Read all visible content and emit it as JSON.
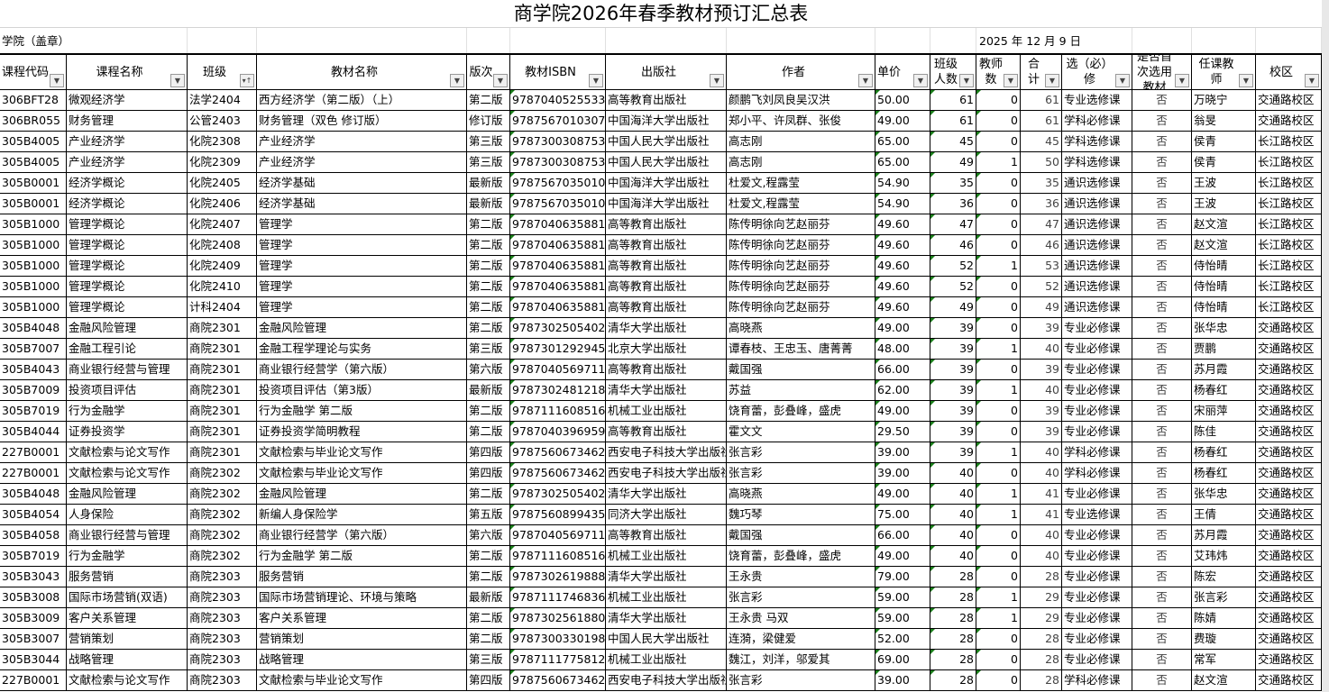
{
  "title": "商学院2026年春季教材预订汇总表",
  "college_label": "学院（盖章）",
  "date": "2025 年  12  月   9   日",
  "headers": [
    "课程代码",
    "课程名称",
    "班级",
    "教材名称",
    "版次",
    "教材ISBN",
    "出版社",
    "作者",
    "单价",
    "班级人数",
    "教师数",
    "合计",
    "选（必）修",
    "是否首次选用教材",
    "任课教师",
    "校区"
  ],
  "rows": [
    [
      "306BFT28",
      "微观经济学",
      "法学2404",
      "西方经济学（第二版）（上）",
      "第二版",
      "9787040525533",
      "高等教育出版社",
      "颜鹏飞刘凤良吴汉洪",
      "50.00",
      "61",
      "0",
      "61",
      "专业选修课",
      "否",
      "万晓宁",
      "交通路校区"
    ],
    [
      "306BR055",
      "财务管理",
      "公管2403",
      "财务管理（双色 修订版）",
      "修订版",
      "9787567010307",
      "中国海洋大学出版社",
      "郑小平、许凤群、张俊",
      "49.00",
      "61",
      "0",
      "61",
      "学科必修课",
      "否",
      "翁旻",
      "交通路校区"
    ],
    [
      "305B4005",
      "产业经济学",
      "化院2308",
      "产业经济学",
      "第三版",
      "9787300308753",
      "中国人民大学出版社",
      "高志刚",
      "65.00",
      "45",
      "0",
      "45",
      "学科选修课",
      "否",
      "侯青",
      "长江路校区"
    ],
    [
      "305B4005",
      "产业经济学",
      "化院2309",
      "产业经济学",
      "第三版",
      "9787300308753",
      "中国人民大学出版社",
      "高志刚",
      "65.00",
      "49",
      "1",
      "50",
      "学科选修课",
      "否",
      "侯青",
      "长江路校区"
    ],
    [
      "305B0001",
      "经济学概论",
      "化院2405",
      "经济学基础",
      "最新版",
      "9787567035010",
      "中国海洋大学出版社",
      "杜爱文,程露莹",
      "54.90",
      "35",
      "0",
      "35",
      "通识选修课",
      "否",
      "王波",
      "长江路校区"
    ],
    [
      "305B0001",
      "经济学概论",
      "化院2406",
      "经济学基础",
      "最新版",
      "9787567035010",
      "中国海洋大学出版社",
      "杜爱文,程露莹",
      "54.90",
      "36",
      "0",
      "36",
      "通识选修课",
      "否",
      "王波",
      "长江路校区"
    ],
    [
      "305B1000",
      "管理学概论",
      "化院2407",
      "管理学",
      "第二版",
      "9787040635881",
      "高等教育出版社",
      "陈传明徐向艺赵丽芬",
      "49.60",
      "47",
      "0",
      "47",
      "通识选修课",
      "否",
      "赵文渲",
      "长江路校区"
    ],
    [
      "305B1000",
      "管理学概论",
      "化院2408",
      "管理学",
      "第二版",
      "9787040635881",
      "高等教育出版社",
      "陈传明徐向艺赵丽芬",
      "49.60",
      "46",
      "0",
      "46",
      "通识选修课",
      "否",
      "赵文渲",
      "长江路校区"
    ],
    [
      "305B1000",
      "管理学概论",
      "化院2409",
      "管理学",
      "第二版",
      "9787040635881",
      "高等教育出版社",
      "陈传明徐向艺赵丽芬",
      "49.60",
      "52",
      "1",
      "53",
      "通识选修课",
      "否",
      "侍怡晴",
      "长江路校区"
    ],
    [
      "305B1000",
      "管理学概论",
      "化院2410",
      "管理学",
      "第二版",
      "9787040635881",
      "高等教育出版社",
      "陈传明徐向艺赵丽芬",
      "49.60",
      "52",
      "0",
      "52",
      "通识选修课",
      "否",
      "侍怡晴",
      "长江路校区"
    ],
    [
      "305B1000",
      "管理学概论",
      "计科2404",
      "管理学",
      "第二版",
      "9787040635881",
      "高等教育出版社",
      "陈传明徐向艺赵丽芬",
      "49.60",
      "49",
      "0",
      "49",
      "通识选修课",
      "否",
      "侍怡晴",
      "长江路校区"
    ],
    [
      "305B4048",
      "金融风险管理",
      "商院2301",
      "金融风险管理",
      "第二版",
      "9787302505402",
      "清华大学出版社",
      "高晓燕",
      "49.00",
      "39",
      "0",
      "39",
      "专业必修课",
      "否",
      "张华忠",
      "交通路校区"
    ],
    [
      "305B7007",
      "金融工程引论",
      "商院2301",
      "金融工程学理论与实务",
      "第三版",
      "9787301292945",
      "北京大学出版社",
      "谭春枝、王忠玉、唐菁菁",
      "48.00",
      "39",
      "1",
      "40",
      "专业必修课",
      "否",
      "贾鹏",
      "交通路校区"
    ],
    [
      "305B4043",
      "商业银行经营与管理",
      "商院2301",
      "商业银行经营学（第六版）",
      "第六版",
      "9787040569711",
      "高等教育出版社",
      "戴国强",
      "66.00",
      "39",
      "0",
      "39",
      "专业必修课",
      "否",
      "苏月霞",
      "交通路校区"
    ],
    [
      "305B7009",
      "投资项目评估",
      "商院2301",
      "投资项目评估（第3版）",
      "最新版",
      "9787302481218",
      "清华大学出版社",
      "苏益",
      "62.00",
      "39",
      "1",
      "40",
      "专业必修课",
      "否",
      "杨春红",
      "交通路校区"
    ],
    [
      "305B7019",
      "行为金融学",
      "商院2301",
      "行为金融学 第二版",
      "第二版",
      "9787111608516",
      "机械工业出版社",
      "饶育蕾，彭叠峰，盛虎",
      "49.00",
      "39",
      "0",
      "39",
      "专业必修课",
      "否",
      "宋丽萍",
      "交通路校区"
    ],
    [
      "305B4044",
      "证券投资学",
      "商院2301",
      "证券投资学简明教程",
      "第二版",
      "9787040396959",
      "高等教育出版社",
      "霍文文",
      "29.50",
      "39",
      "0",
      "39",
      "专业必修课",
      "否",
      "陈佳",
      "交通路校区"
    ],
    [
      "227B0001",
      "文献检索与论文写作",
      "商院2301",
      "文献检索与毕业论文写作",
      "第四版",
      "9787560673462",
      "西安电子科技大学出版社",
      "张言彩",
      "39.00",
      "39",
      "1",
      "40",
      "学科必修课",
      "否",
      "杨春红",
      "交通路校区"
    ],
    [
      "227B0001",
      "文献检索与论文写作",
      "商院2302",
      "文献检索与毕业论文写作",
      "第四版",
      "9787560673462",
      "西安电子科技大学出版社",
      "张言彩",
      "39.00",
      "40",
      "0",
      "40",
      "学科必修课",
      "否",
      "杨春红",
      "交通路校区"
    ],
    [
      "305B4048",
      "金融风险管理",
      "商院2302",
      "金融风险管理",
      "第二版",
      "9787302505402",
      "清华大学出版社",
      "高晓燕",
      "49.00",
      "40",
      "1",
      "41",
      "专业必修课",
      "否",
      "张华忠",
      "交通路校区"
    ],
    [
      "305B4054",
      "人身保险",
      "商院2302",
      "新编人身保险学",
      "第五版",
      "9787560899435",
      "同济大学出版社",
      "魏巧琴",
      "75.00",
      "40",
      "1",
      "41",
      "专业选修课",
      "否",
      "王倩",
      "交通路校区"
    ],
    [
      "305B4058",
      "商业银行经营与管理",
      "商院2302",
      "商业银行经营学（第六版）",
      "第六版",
      "9787040569711",
      "高等教育出版社",
      "戴国强",
      "66.00",
      "40",
      "0",
      "40",
      "专业必修课",
      "否",
      "苏月霞",
      "交通路校区"
    ],
    [
      "305B7019",
      "行为金融学",
      "商院2302",
      "行为金融学 第二版",
      "第二版",
      "9787111608516",
      "机械工业出版社",
      "饶育蕾，彭叠峰，盛虎",
      "49.00",
      "40",
      "0",
      "40",
      "专业必修课",
      "否",
      "艾玮炜",
      "交通路校区"
    ],
    [
      "305B3043",
      "服务营销",
      "商院2303",
      "服务营销",
      "第二版",
      "9787302619888",
      "清华大学出版社",
      "王永贵",
      "79.00",
      "28",
      "0",
      "28",
      "专业必修课",
      "否",
      "陈宏",
      "交通路校区"
    ],
    [
      "305B3008",
      "国际市场营销(双语)",
      "商院2303",
      "国际市场营销理论、环境与策略",
      "最新版",
      "9787111746836",
      "机械工业出版社",
      "张言彩",
      "59.00",
      "28",
      "1",
      "29",
      "专业必修课",
      "否",
      "张言彩",
      "交通路校区"
    ],
    [
      "305B3009",
      "客户关系管理",
      "商院2303",
      "客户关系管理",
      "第二版",
      "9787302561880",
      "清华大学出版社",
      "王永贵 马双",
      "59.00",
      "28",
      "1",
      "29",
      "专业必修课",
      "否",
      "陈婧",
      "交通路校区"
    ],
    [
      "305B3007",
      "营销策划",
      "商院2303",
      "营销策划",
      "第二版",
      "9787300330198",
      "中国人民大学出版社",
      "连漪，梁健爱",
      "52.00",
      "28",
      "0",
      "28",
      "专业必修课",
      "否",
      "费璇",
      "交通路校区"
    ],
    [
      "305B3044",
      "战略管理",
      "商院2303",
      "战略管理",
      "第三版",
      "9787111775812",
      "机械工业出版社",
      "魏江，刘洋，邬爱其",
      "69.00",
      "28",
      "0",
      "28",
      "专业必修课",
      "否",
      "常军",
      "交通路校区"
    ],
    [
      "227B0001",
      "文献检索与论文写作",
      "商院2303",
      "文献检索与毕业论文写作",
      "第四版",
      "9787560673462",
      "西安电子科技大学出版社",
      "张言彩",
      "39.00",
      "28",
      "0",
      "28",
      "学科必修课",
      "否",
      "赵文渲",
      "交通路校区"
    ]
  ],
  "colors": {
    "grid": "#000000",
    "comment_marker": "#1a7f1a"
  }
}
